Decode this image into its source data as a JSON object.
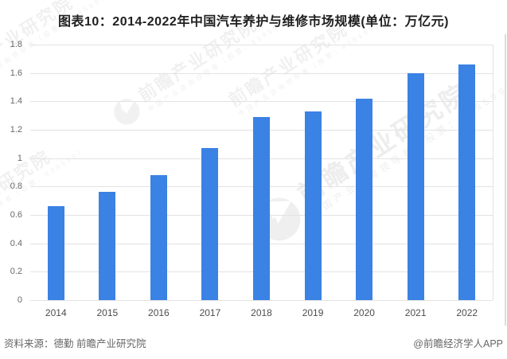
{
  "title": "图表10：2014-2022年中国汽车养护与维修市场规模(单位：万亿元)",
  "chart_data": {
    "type": "bar",
    "title": "图表10：2014-2022年中国汽车养护与维修市场规模",
    "unit": "万亿元",
    "categories": [
      "2014",
      "2015",
      "2016",
      "2017",
      "2018",
      "2019",
      "2020",
      "2021",
      "2022"
    ],
    "values": [
      0.66,
      0.76,
      0.88,
      1.07,
      1.29,
      1.33,
      1.42,
      1.6,
      1.66
    ],
    "xlabel": "",
    "ylabel": "",
    "ylim": [
      0,
      1.8
    ],
    "ytick_step": 0.2,
    "yticks": [
      "0",
      "0.2",
      "0.4",
      "0.6",
      "0.8",
      "1",
      "1.2",
      "1.4",
      "1.6",
      "1.8"
    ],
    "grid": "horizontal",
    "legend": "none",
    "bar_color": "#3a82e4"
  },
  "watermark": {
    "brand": "前瞻产业研究院",
    "tagline": "中国产业咨询领导者（股票：839599）",
    "logo": "qianzhan-logo"
  },
  "footer": {
    "source": "资料来源：德勤 前瞻产业研究院",
    "credit": "@前瞻经济学人APP"
  },
  "colors": {
    "bar": "#3a82e4",
    "grid": "#e3e3e3",
    "title_text": "#1f1f1f",
    "axis_text": "#595959",
    "footer_text": "#666666"
  }
}
